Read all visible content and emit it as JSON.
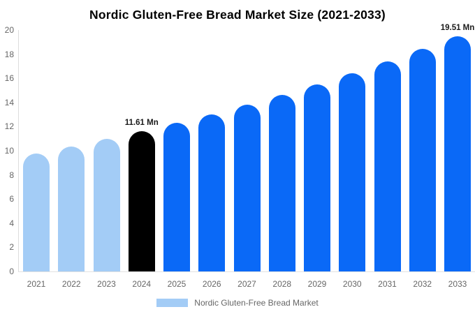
{
  "palette": {
    "light_blue": "#A3CCF6",
    "blue": "#0A69F7",
    "black": "#000000",
    "axis_line": "#dddddd",
    "tick_text": "#666666",
    "data_label_text": "#1a1a1a"
  },
  "legend": {
    "label": "Nordic Gluten-Free Bread Market",
    "swatch_color": "#A3CCF6"
  },
  "chart_data": {
    "type": "bar",
    "title": "Nordic Gluten-Free Bread Market Size (2021-2033)",
    "xlabel": "",
    "ylabel": "",
    "unit": "Mn",
    "categories": [
      2021,
      2022,
      2023,
      2024,
      2025,
      2026,
      2027,
      2028,
      2029,
      2030,
      2031,
      2032,
      2033
    ],
    "values": [
      9.76,
      10.34,
      10.96,
      11.61,
      12.3,
      13.03,
      13.8,
      14.62,
      15.49,
      16.41,
      17.38,
      18.42,
      19.51
    ],
    "bar_color_keys": [
      "light_blue",
      "light_blue",
      "light_blue",
      "black",
      "blue",
      "blue",
      "blue",
      "blue",
      "blue",
      "blue",
      "blue",
      "blue",
      "blue"
    ],
    "annotations": [
      {
        "category": 2024,
        "text": "11.61 Mn"
      },
      {
        "category": 2033,
        "text": "19.51 Mn"
      }
    ],
    "ylim": [
      0,
      20
    ],
    "y_ticks": [
      0,
      2,
      4,
      6,
      8,
      10,
      12,
      14,
      16,
      18,
      20
    ],
    "grid": false,
    "legend_position": "bottom"
  }
}
